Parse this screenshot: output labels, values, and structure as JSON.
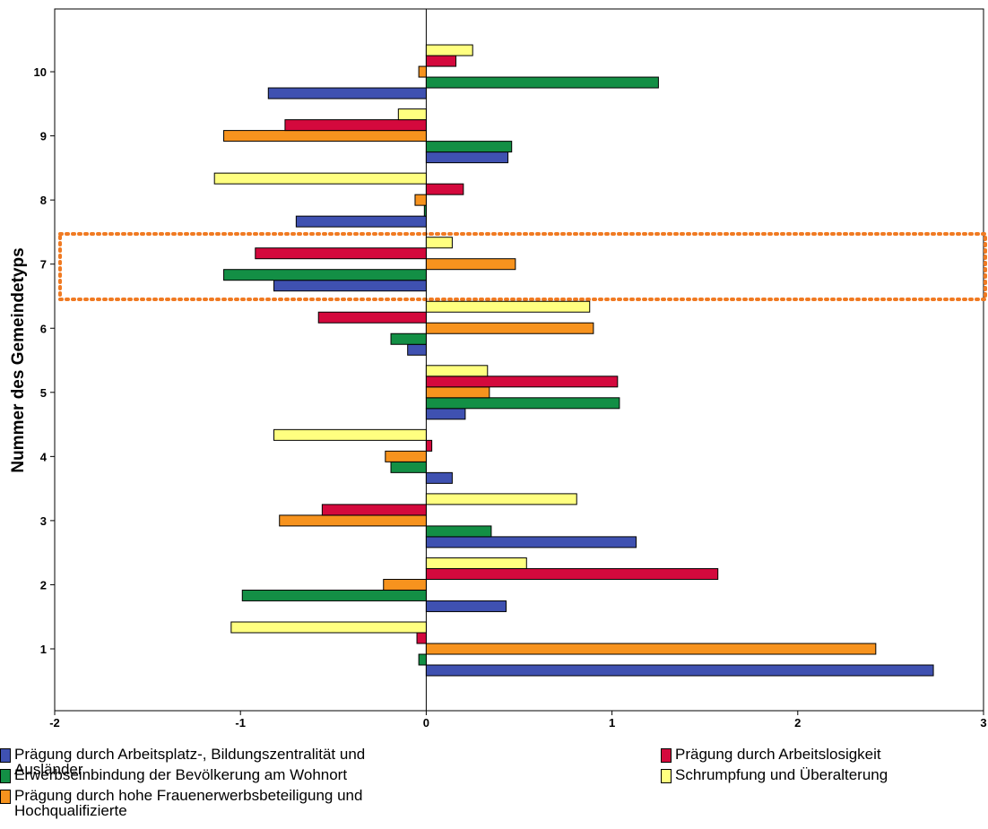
{
  "chart_data": {
    "type": "barh",
    "ylabel": "Nummer des Gemeindetyps",
    "categories": [
      "1",
      "2",
      "3",
      "4",
      "5",
      "6",
      "7",
      "8",
      "9",
      "10"
    ],
    "xlim": [
      -2,
      3
    ],
    "xticks": [
      -2,
      -1,
      0,
      1,
      2,
      3
    ],
    "series": [
      {
        "name": "Prägung durch Arbeitsplatz-, Bildungszentralität und Ausländer",
        "color": "#3f51b1",
        "values": [
          2.73,
          0.43,
          1.13,
          0.14,
          0.21,
          -0.1,
          -0.82,
          -0.7,
          0.44,
          -0.85
        ]
      },
      {
        "name": "Erwerbseinbindung der Bevölkerung am Wohnort",
        "color": "#138f45",
        "values": [
          -0.04,
          -0.99,
          0.35,
          -0.19,
          1.04,
          -0.19,
          -1.09,
          -0.01,
          0.46,
          1.25
        ]
      },
      {
        "name": "Prägung durch hohe Frauenerwerbsbeteiligung und Hochqualifizierte",
        "color": "#f7931e",
        "values": [
          2.42,
          -0.23,
          -0.79,
          -0.22,
          0.34,
          0.9,
          0.48,
          -0.06,
          -1.09,
          -0.04
        ]
      },
      {
        "name": "Prägung durch Arbeitslosigkeit",
        "color": "#d4093d",
        "values": [
          -0.05,
          1.57,
          -0.56,
          0.03,
          1.03,
          -0.58,
          -0.92,
          0.2,
          -0.76,
          0.16
        ]
      },
      {
        "name": "Schrumpfung und Überalterung",
        "color": "#ffff80",
        "values": [
          -1.05,
          0.54,
          0.81,
          -0.82,
          0.33,
          0.88,
          0.14,
          -1.14,
          -0.15,
          0.25
        ]
      }
    ]
  }
}
